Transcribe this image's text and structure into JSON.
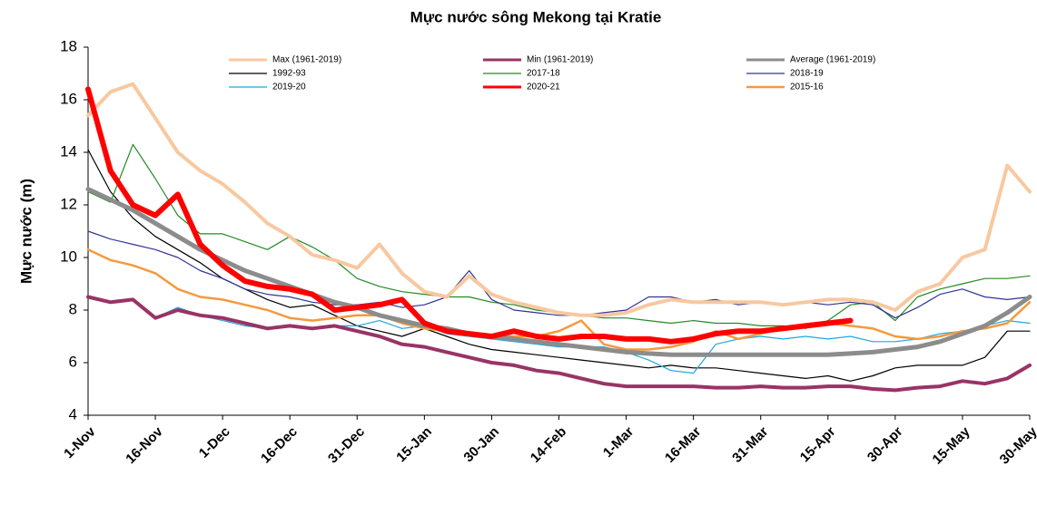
{
  "chart_data": {
    "type": "line",
    "title": "Mực nước sông Mekong tại Kratie",
    "y_label": "Mực nước (m)",
    "categories": [
      "1-Nov",
      null,
      null,
      "16-Nov",
      null,
      null,
      "1-Dec",
      null,
      null,
      "16-Dec",
      null,
      null,
      "31-Dec",
      null,
      null,
      "15-Jan",
      null,
      null,
      "30-Jan",
      null,
      null,
      "14-Feb",
      null,
      null,
      "1-Mar",
      null,
      null,
      "16-Mar",
      null,
      null,
      "31-Mar",
      null,
      null,
      "15-Apr",
      null,
      null,
      "30-Apr",
      null,
      null,
      "15-May",
      null,
      null,
      "30-May"
    ],
    "ylim": [
      4,
      18
    ],
    "yticks": [
      4,
      6,
      8,
      10,
      12,
      14,
      16,
      18
    ],
    "grid": false,
    "series": [
      {
        "name": "Max (1961-2019)",
        "color": "#f8c8a0",
        "values": [
          15.4,
          16.3,
          16.6,
          15.3,
          14,
          13.3,
          12.8,
          12.1,
          11.3,
          10.8,
          10.1,
          9.9,
          9.6,
          10.5,
          9.4,
          8.7,
          8.5,
          9.3,
          8.6,
          8.3,
          8.1,
          7.9,
          7.8,
          7.8,
          7.9,
          8.2,
          8.4,
          8.3,
          8.3,
          8.3,
          8.3,
          8.2,
          8.3,
          8.4,
          8.4,
          8.3,
          8.0,
          8.7,
          9.0,
          10.0,
          10.3,
          13.5,
          12.5
        ]
      },
      {
        "name": "Min (1961-2019)",
        "color": "#993366",
        "values": [
          8.5,
          8.3,
          8.4,
          7.7,
          8.0,
          7.8,
          7.7,
          7.5,
          7.3,
          7.4,
          7.3,
          7.4,
          7.2,
          7.0,
          6.7,
          6.6,
          6.4,
          6.2,
          6.0,
          5.9,
          5.7,
          5.6,
          5.4,
          5.2,
          5.1,
          5.1,
          5.1,
          5.1,
          5.05,
          5.05,
          5.1,
          5.05,
          5.05,
          5.1,
          5.1,
          5.0,
          4.95,
          5.05,
          5.1,
          5.3,
          5.2,
          5.4,
          5.9
        ]
      },
      {
        "name": "Average (1961-2019)",
        "color": "#8c8c8c",
        "values": [
          12.6,
          12.2,
          11.8,
          11.3,
          10.8,
          10.3,
          9.9,
          9.5,
          9.2,
          8.9,
          8.6,
          8.3,
          8.1,
          7.8,
          7.6,
          7.4,
          7.3,
          7.1,
          7.0,
          6.9,
          6.8,
          6.7,
          6.6,
          6.5,
          6.4,
          6.35,
          6.3,
          6.3,
          6.3,
          6.3,
          6.3,
          6.3,
          6.3,
          6.3,
          6.35,
          6.4,
          6.5,
          6.6,
          6.8,
          7.1,
          7.4,
          7.9,
          8.5
        ]
      },
      {
        "name": "1992-93",
        "color": "#000000",
        "values": [
          14.1,
          12.5,
          11.5,
          10.8,
          10.3,
          9.8,
          9.2,
          8.8,
          8.4,
          8.1,
          8.2,
          7.8,
          7.4,
          7.2,
          7.0,
          7.3,
          7.0,
          6.7,
          6.5,
          6.4,
          6.3,
          6.2,
          6.1,
          6.0,
          5.9,
          5.8,
          5.9,
          5.8,
          5.8,
          5.7,
          5.6,
          5.5,
          5.4,
          5.5,
          5.3,
          5.5,
          5.8,
          5.9,
          5.9,
          5.9,
          6.2,
          7.2,
          7.2
        ]
      },
      {
        "name": "2017-18",
        "color": "#228b22",
        "values": [
          12.5,
          12.1,
          14.3,
          13.0,
          11.6,
          10.9,
          10.9,
          10.6,
          10.3,
          10.8,
          10.4,
          9.9,
          9.2,
          8.9,
          8.7,
          8.6,
          8.5,
          8.5,
          8.3,
          8.2,
          8.0,
          7.9,
          7.8,
          7.7,
          7.7,
          7.6,
          7.5,
          7.6,
          7.5,
          7.5,
          7.4,
          7.4,
          7.3,
          7.6,
          8.2,
          8.3,
          7.6,
          8.5,
          8.8,
          9.0,
          9.2,
          9.2,
          9.3
        ]
      },
      {
        "name": "2018-19",
        "color": "#333399",
        "values": [
          11.0,
          10.7,
          10.5,
          10.3,
          10.0,
          9.5,
          9.2,
          8.8,
          8.6,
          8.5,
          8.3,
          8.2,
          8.2,
          8.3,
          8.1,
          8.2,
          8.5,
          9.5,
          8.4,
          8.0,
          7.9,
          7.8,
          7.8,
          7.9,
          8.0,
          8.5,
          8.5,
          8.3,
          8.4,
          8.2,
          8.3,
          8.2,
          8.3,
          8.2,
          8.3,
          8.2,
          7.7,
          8.1,
          8.6,
          8.8,
          8.5,
          8.4,
          8.5
        ]
      },
      {
        "name": "2019-20",
        "color": "#1ea8e0",
        "values": [
          8.5,
          8.3,
          8.4,
          7.7,
          8.1,
          7.8,
          7.6,
          7.4,
          7.3,
          7.4,
          7.3,
          7.4,
          7.4,
          7.6,
          7.3,
          7.4,
          7.1,
          7.0,
          6.9,
          6.8,
          6.7,
          6.6,
          6.6,
          6.6,
          6.4,
          6.1,
          5.7,
          5.6,
          6.7,
          6.9,
          7.0,
          6.9,
          7.0,
          6.9,
          7.0,
          6.8,
          6.8,
          6.9,
          7.1,
          7.2,
          7.4,
          7.6,
          7.5
        ]
      },
      {
        "name": "2020-21",
        "color": "#ff0000",
        "values": [
          16.4,
          13.3,
          12.0,
          11.6,
          12.4,
          10.5,
          9.7,
          9.1,
          8.9,
          8.8,
          8.6,
          8.0,
          8.1,
          8.2,
          8.4,
          7.5,
          7.2,
          7.1,
          7.0,
          7.2,
          7.0,
          6.9,
          7.0,
          7.0,
          6.9,
          6.9,
          6.8,
          6.9,
          7.1,
          7.2,
          7.2,
          7.3,
          7.4,
          7.5,
          7.6,
          null,
          null,
          null,
          null,
          null,
          null,
          null,
          null
        ]
      },
      {
        "name": "2015-16",
        "color": "#f5993d",
        "values": [
          10.3,
          9.9,
          9.7,
          9.4,
          8.8,
          8.5,
          8.4,
          8.2,
          8.0,
          7.7,
          7.6,
          7.7,
          7.8,
          7.8,
          7.5,
          7.3,
          7.2,
          7.1,
          7.0,
          7.0,
          7.0,
          7.2,
          7.6,
          6.7,
          6.5,
          6.5,
          6.6,
          6.8,
          7.2,
          6.9,
          7.1,
          7.3,
          7.4,
          7.5,
          7.4,
          7.3,
          7.0,
          6.9,
          7.0,
          7.2,
          7.3,
          7.5,
          8.3
        ]
      }
    ]
  }
}
